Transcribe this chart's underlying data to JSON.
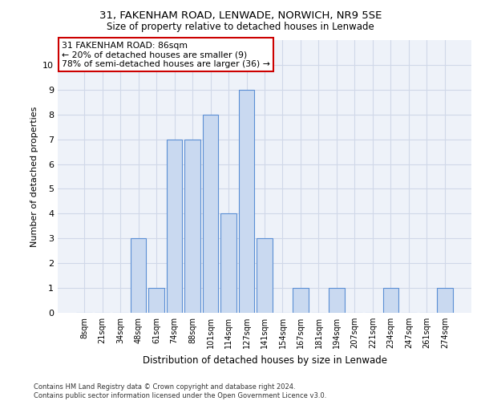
{
  "title1": "31, FAKENHAM ROAD, LENWADE, NORWICH, NR9 5SE",
  "title2": "Size of property relative to detached houses in Lenwade",
  "xlabel": "Distribution of detached houses by size in Lenwade",
  "ylabel": "Number of detached properties",
  "categories": [
    "8sqm",
    "21sqm",
    "34sqm",
    "48sqm",
    "61sqm",
    "74sqm",
    "88sqm",
    "101sqm",
    "114sqm",
    "127sqm",
    "141sqm",
    "154sqm",
    "167sqm",
    "181sqm",
    "194sqm",
    "207sqm",
    "221sqm",
    "234sqm",
    "247sqm",
    "261sqm",
    "274sqm"
  ],
  "values": [
    0,
    0,
    0,
    3,
    1,
    7,
    7,
    8,
    4,
    9,
    3,
    0,
    1,
    0,
    1,
    0,
    0,
    1,
    0,
    0,
    1
  ],
  "highlight_index": 6,
  "bar_color": "#c9d9f0",
  "bar_edge_color": "#5b8fd4",
  "annotation_box_text": "31 FAKENHAM ROAD: 86sqm\n← 20% of detached houses are smaller (9)\n78% of semi-detached houses are larger (36) →",
  "annotation_box_edge_color": "#cc0000",
  "annotation_box_facecolor": "#ffffff",
  "footer_text": "Contains HM Land Registry data © Crown copyright and database right 2024.\nContains public sector information licensed under the Open Government Licence v3.0.",
  "ylim": [
    0,
    11
  ],
  "yticks": [
    0,
    1,
    2,
    3,
    4,
    5,
    6,
    7,
    8,
    9,
    10
  ],
  "grid_color": "#d0d8e8",
  "background_color": "#eef2f9"
}
